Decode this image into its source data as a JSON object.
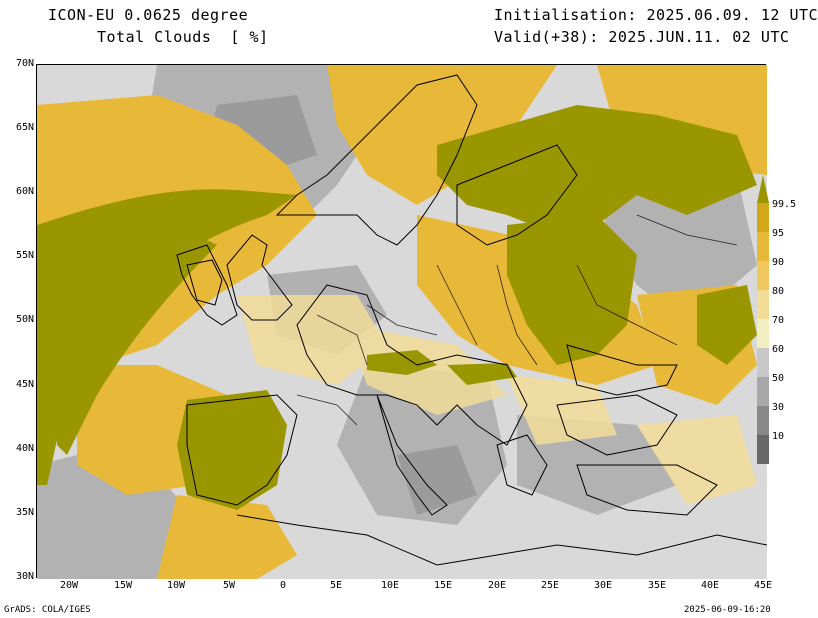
{
  "header": {
    "model": "ICON-EU 0.0625 degree",
    "field": "Total Clouds  [ %]",
    "init": "Initialisation: 2025.06.09. 12 UTC",
    "valid": "Valid(+38): 2025.JUN.11. 02 UTC"
  },
  "axes": {
    "lat_labels": [
      "70N",
      "65N",
      "60N",
      "55N",
      "50N",
      "45N",
      "40N",
      "35N",
      "30N"
    ],
    "lon_labels": [
      "20W",
      "15W",
      "10W",
      "5W",
      "0",
      "5E",
      "10E",
      "15E",
      "20E",
      "25E",
      "30E",
      "35E",
      "40E",
      "45E"
    ]
  },
  "colorbar": {
    "labels": [
      "99.5",
      "95",
      "90",
      "80",
      "70",
      "60",
      "50",
      "30",
      "10"
    ],
    "colors": [
      "#d2a818",
      "#e8b838",
      "#f0c860",
      "#f2dc98",
      "#f2f0c0",
      "#c8c8c8",
      "#a8a8a8",
      "#888888",
      "#686868"
    ],
    "top_arrow_color": "#9a9600"
  },
  "palette": {
    "overcast": "#9a9600",
    "heavy": "#e8b838",
    "light_gray": "#d9d9d9",
    "gray": "#a0a0a0"
  },
  "footer": {
    "left": "GrADS: COLA/IGES",
    "right": "2025-06-09-16:20"
  }
}
